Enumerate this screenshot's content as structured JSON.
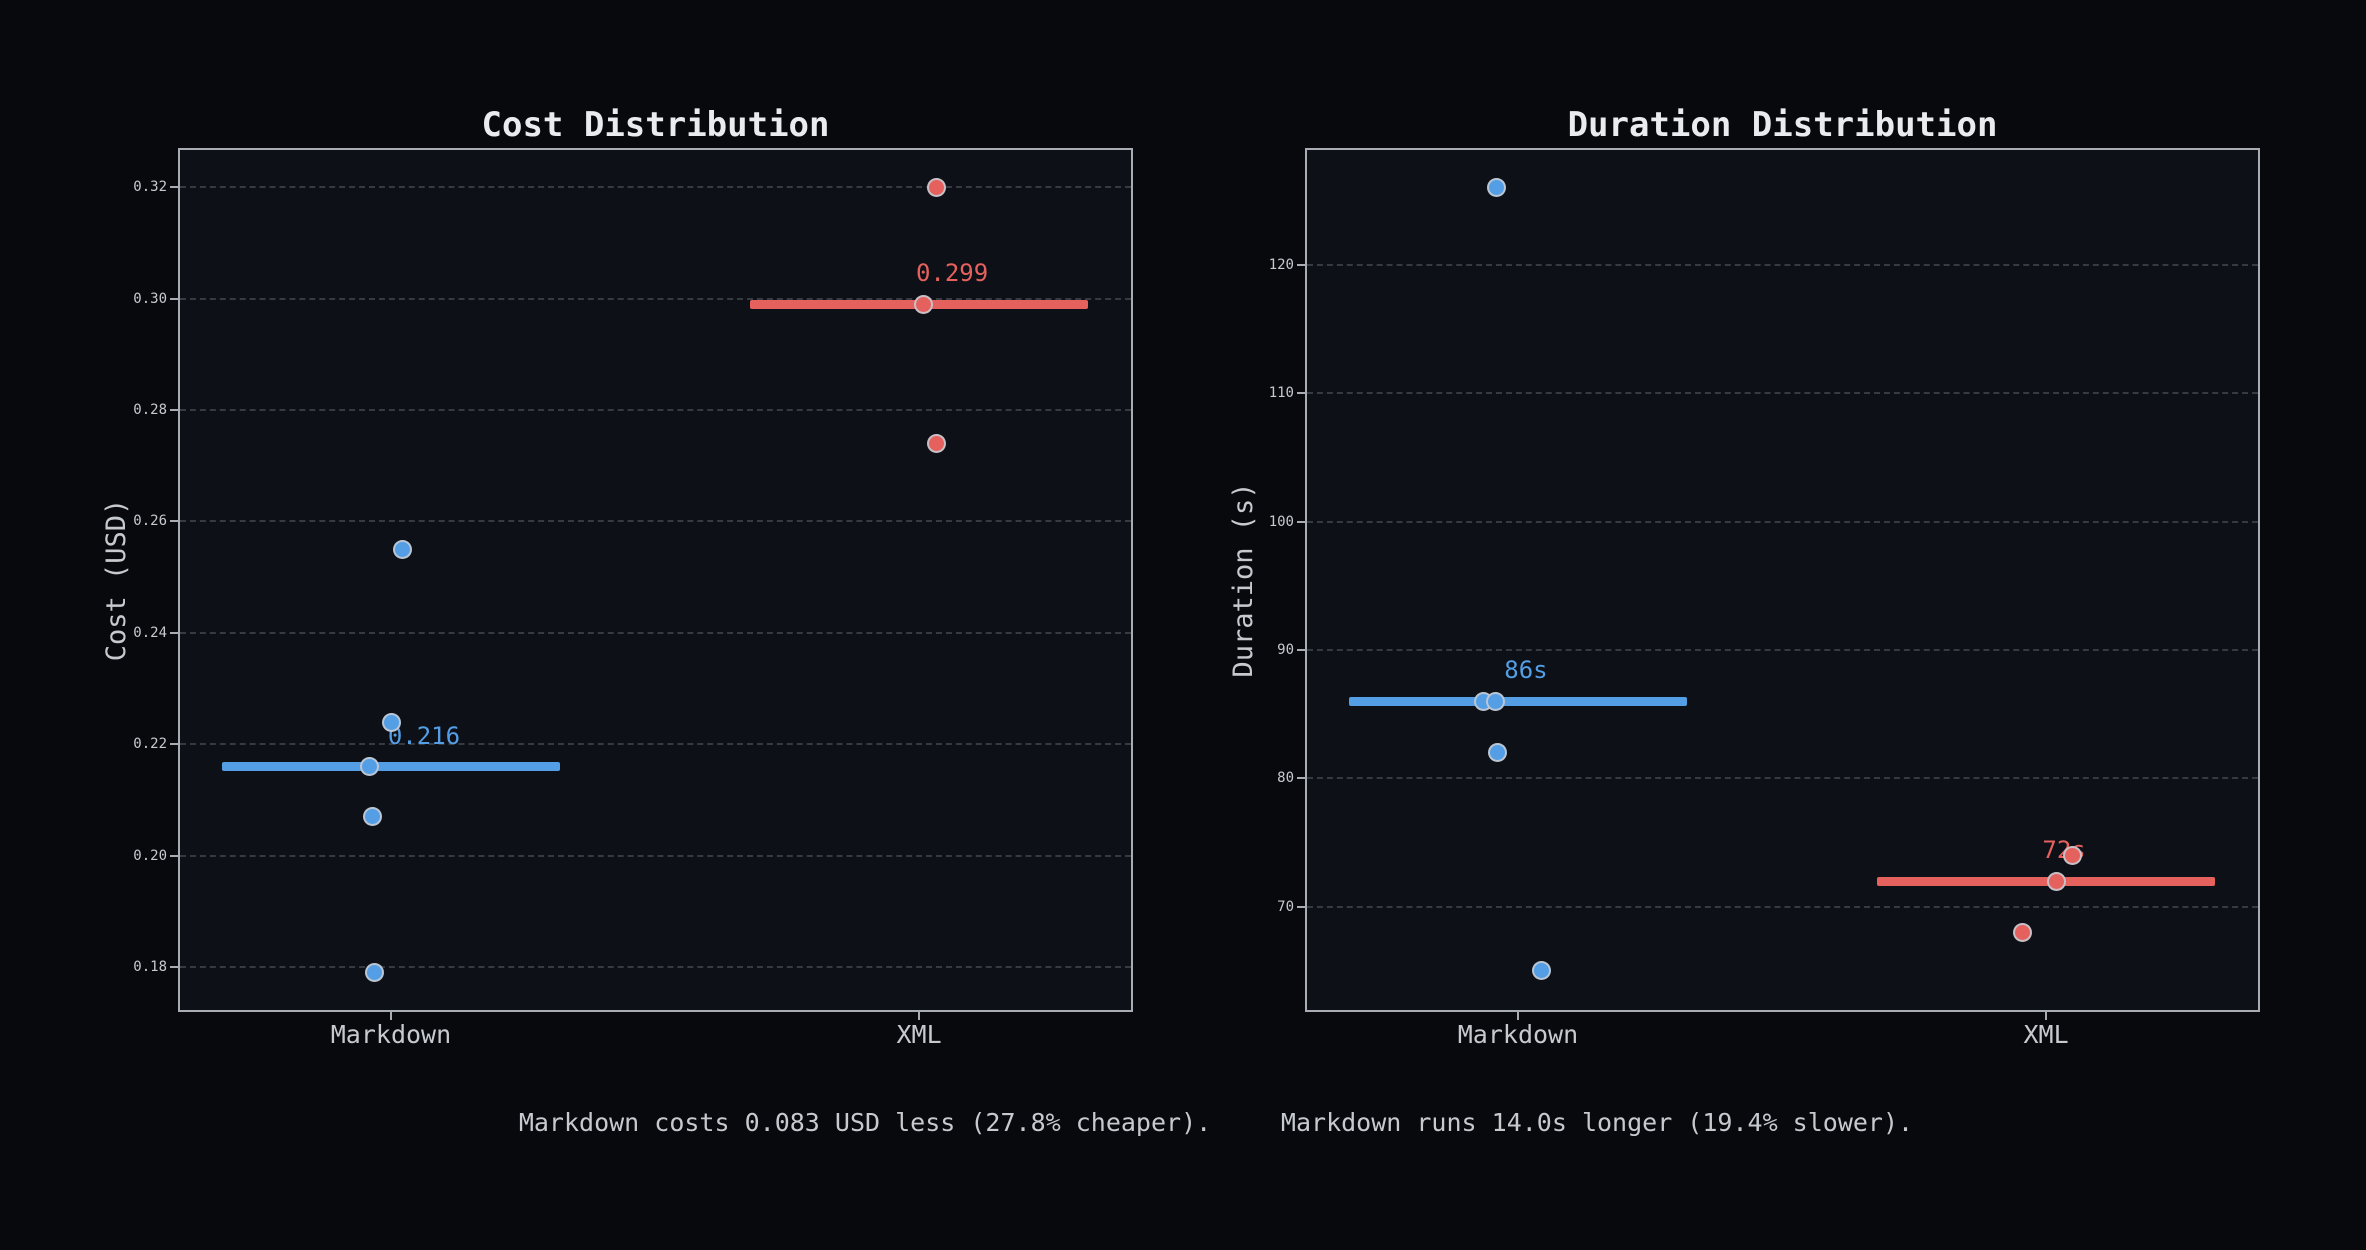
{
  "figure": {
    "background": "#07090d",
    "plot_background": "#0d1016",
    "accent_blue": "#539ee5",
    "accent_red": "#e4615e",
    "captions": [
      {
        "text": "Markdown costs 0.083 USD less (27.8% cheaper)."
      },
      {
        "text": "Markdown runs 14.0s longer (19.4% slower)."
      }
    ]
  },
  "chart_data": [
    {
      "type": "scatter",
      "title": "Cost Distribution",
      "ylabel": "Cost (USD)",
      "xlabel": "",
      "grid": true,
      "legend_position": "none",
      "ylim": [
        0.172,
        0.327
      ],
      "yticks": [
        {
          "value": 0.32,
          "label": "0.32"
        },
        {
          "value": 0.3,
          "label": "0.30"
        },
        {
          "value": 0.28,
          "label": "0.28"
        },
        {
          "value": 0.26,
          "label": "0.26"
        },
        {
          "value": 0.24,
          "label": "0.24"
        },
        {
          "value": 0.22,
          "label": "0.22"
        },
        {
          "value": 0.2,
          "label": "0.20"
        },
        {
          "value": 0.18,
          "label": "0.18"
        }
      ],
      "categories": [
        {
          "label": "Markdown",
          "color": "#539ee5",
          "points": [
            {
              "value": 0.255,
              "dx": 12
            },
            {
              "value": 0.224,
              "dx": 1
            },
            {
              "value": 0.216,
              "dx": -21
            },
            {
              "value": 0.207,
              "dx": -18
            },
            {
              "value": 0.179,
              "dx": -16
            }
          ],
          "median": {
            "value": 0.216,
            "label": "0.216",
            "dx": 33
          }
        },
        {
          "label": "XML",
          "color": "#e4615e",
          "points": [
            {
              "value": 0.32,
              "dx": 17
            },
            {
              "value": 0.299,
              "dx": 4
            },
            {
              "value": 0.274,
              "dx": 17
            }
          ],
          "median": {
            "value": 0.299,
            "label": "0.299",
            "dx": 33
          }
        }
      ]
    },
    {
      "type": "scatter",
      "title": "Duration Distribution",
      "ylabel": "Duration (s)",
      "xlabel": "",
      "grid": true,
      "legend_position": "none",
      "ylim": [
        61.8,
        129.1
      ],
      "yticks": [
        {
          "value": 120,
          "label": "120"
        },
        {
          "value": 110,
          "label": "110"
        },
        {
          "value": 100,
          "label": "100"
        },
        {
          "value": 90,
          "label": "90"
        },
        {
          "value": 80,
          "label": "80"
        },
        {
          "value": 70,
          "label": "70"
        }
      ],
      "categories": [
        {
          "label": "Markdown",
          "color": "#539ee5",
          "points": [
            {
              "value": 126,
              "dx": -21
            },
            {
              "value": 86,
              "dx": -34
            },
            {
              "value": 86,
              "dx": -22
            },
            {
              "value": 82,
              "dx": -20
            },
            {
              "value": 65,
              "dx": 24
            }
          ],
          "median": {
            "value": 86,
            "label": "86s",
            "dx": 8
          }
        },
        {
          "label": "XML",
          "color": "#e4615e",
          "points": [
            {
              "value": 74,
              "dx": 26
            },
            {
              "value": 72,
              "dx": 10
            },
            {
              "value": 68,
              "dx": -24
            }
          ],
          "median": {
            "value": 72,
            "label": "72s",
            "dx": 18
          }
        }
      ]
    }
  ]
}
